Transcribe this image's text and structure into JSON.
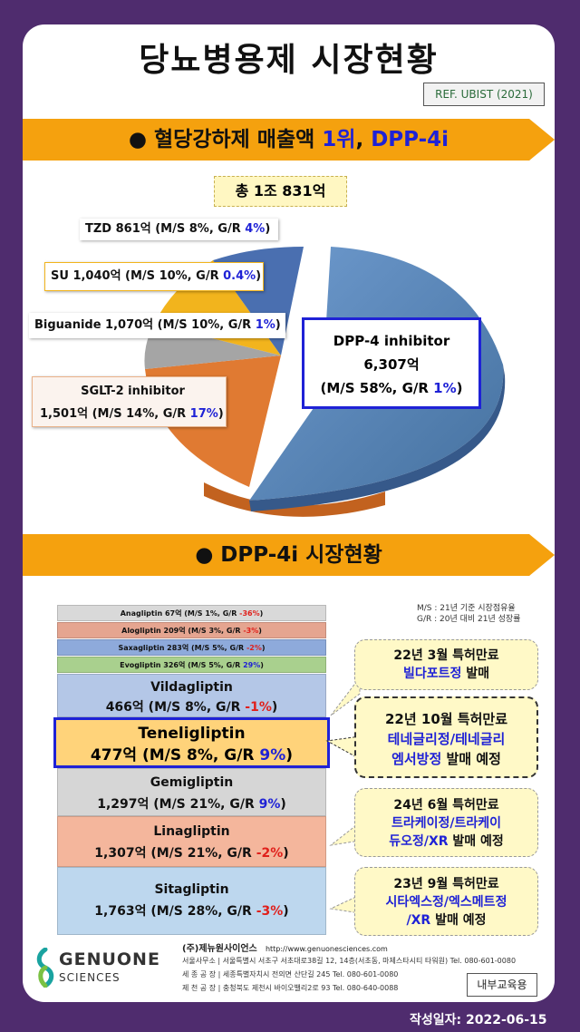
{
  "title": "당뇨병용제 시장현황",
  "ref": "REF. UBIST (2021)",
  "banner1": {
    "prefix": "● 혈당강하제 매출액 ",
    "rank": "1위",
    "sep": ", ",
    "name": "DPP-4i"
  },
  "total": "총 1조 831억",
  "pie": {
    "type": "pie",
    "slices": [
      {
        "name": "DPP-4 inhibitor",
        "value": 6307,
        "share": 58,
        "color": "#5b8ac0"
      },
      {
        "name": "SGLT-2 inhibitor",
        "value": 1501,
        "share": 14,
        "color": "#e07a32"
      },
      {
        "name": "Biguanide",
        "value": 1070,
        "share": 10,
        "color": "#a5a5a5"
      },
      {
        "name": "SU",
        "value": 1040,
        "share": 10,
        "color": "#f2b41d"
      },
      {
        "name": "TZD",
        "value": 861,
        "share": 8,
        "color": "#4a6fb0"
      }
    ],
    "labels": {
      "tzd": {
        "main": "TZD 861억 (M/S 8%, G/R ",
        "gr": "4%",
        "end": ")"
      },
      "su": {
        "main": "SU 1,040억 (M/S 10%, G/R ",
        "gr": "0.4%",
        "end": ")"
      },
      "big": {
        "main": "Biguanide 1,070억 (M/S 10%, G/R ",
        "gr": "1%",
        "end": ")"
      },
      "sglt1": "SGLT-2 inhibitor",
      "sglt2": {
        "main": "1,501억 (M/S 14%, G/R ",
        "gr": "17%",
        "end": ")"
      },
      "dpp1": "DPP-4 inhibitor",
      "dpp2": "6,307억",
      "dpp3": {
        "main": "(M/S 58%, G/R ",
        "gr": "1%",
        "end": ")"
      }
    }
  },
  "banner2": "● DPP-4i 시장현황",
  "legend_note": [
    "M/S : 21년 기준 시장점유율",
    "G/R : 20년 대비 21년 성장률"
  ],
  "bars": {
    "anagliptin": {
      "main": "Anagliptin 67억 (M/S 1%, G/R ",
      "gr": "-36%",
      "end": ")"
    },
    "alogliptin": {
      "main": "Alogliptin 209억 (M/S 3%, G/R ",
      "gr": "-3%",
      "end": ")"
    },
    "saxagliptin": {
      "main": "Saxagliptin  283억 (M/S 5%, G/R ",
      "gr": "-2%",
      "end": ")"
    },
    "evogliptin": {
      "main": "Evogliptin 326억 (M/S 5%, G/R ",
      "gr": "29%",
      "end": ")"
    },
    "vildagliptin": {
      "name": "Vildagliptin",
      "main": "466억 (M/S 8%, G/R ",
      "gr": "-1%",
      "end": ")"
    },
    "teneligliptin": {
      "name": "Teneligliptin",
      "main": "477억 (M/S 8%, G/R ",
      "gr": "9%",
      "end": ")"
    },
    "gemigliptin": {
      "name": "Gemigliptin",
      "main": "1,297억 (M/S 21%, G/R ",
      "gr": "9%",
      "end": ")"
    },
    "linagliptin": {
      "name": "Linagliptin",
      "main": "1,307억 (M/S 21%, G/R ",
      "gr": "-2%",
      "end": ")"
    },
    "sitagliptin": {
      "name": "Sitagliptin",
      "main": "1,763억 (M/S 28%, G/R ",
      "gr": "-3%",
      "end": ")"
    }
  },
  "callouts": {
    "c1": {
      "l1": "22년 3월 특허만료",
      "l2b": "빌다포트정",
      "l2": " 발매"
    },
    "c2": {
      "l1": "22년 10월 특허만료",
      "l2b": "테네글리정/테네글리",
      "l3b": "엠서방정",
      "l3": " 발매 예정"
    },
    "c3": {
      "l1": "24년 6월 특허만료",
      "l2b": "트라케이정/트라케이",
      "l3b": "듀오정/XR",
      "l3": " 발매 예정"
    },
    "c4": {
      "l1": "23년 9월 특허만료",
      "l2b": "시타엑스정/엑스메트정",
      "l3b": "/XR",
      "l3": " 발매 예정"
    }
  },
  "footer": {
    "logo_line1": "GENUONE",
    "logo_line2": "SCIENCES",
    "company": "(주)제뉴원사이언스",
    "url": "http://www.genuonesciences.com",
    "addr1": "서울사무소 | 서울특별시 서초구 서초대로38길 12, 14층(서초동, 마제스타시티 타워원)  Tel. 080-601-0080",
    "addr2": "세 종 공 장 | 세종특별자치시 전의면 산단길 245  Tel. 080-601-0080",
    "addr3": "제 천 공 장 | 충청북도 제천시 바이오밸리2로 93  Tel. 080-640-0088",
    "internal": "내부교육용",
    "date": "작성일자: 2022-06-15"
  }
}
